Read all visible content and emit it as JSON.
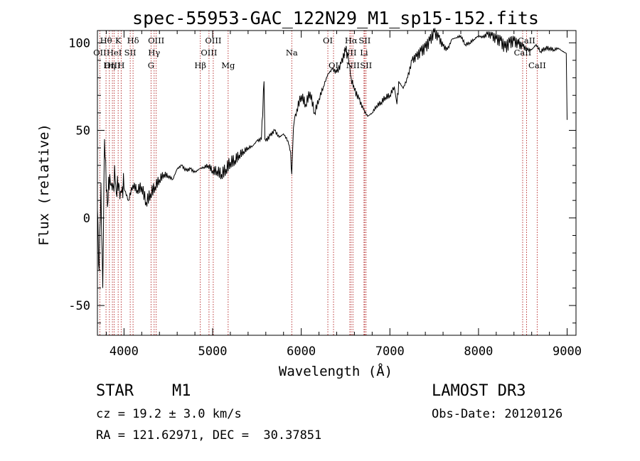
{
  "chart_data": {
    "type": "line",
    "title": "spec-55953-GAC_122N29_M1_sp15-152.fits",
    "xlabel": "Wavelength (Å)",
    "ylabel": "Flux (relative)",
    "xlim": [
      3700,
      9100
    ],
    "ylim": [
      -67,
      107
    ],
    "xticks": [
      4000,
      5000,
      6000,
      7000,
      8000,
      9000
    ],
    "yticks": [
      -50,
      0,
      50,
      100
    ],
    "series": [
      {
        "name": "spectrum",
        "x": [
          3700,
          3720,
          3740,
          3760,
          3780,
          3800,
          3820,
          3840,
          3860,
          3880,
          3900,
          3920,
          3940,
          3960,
          3980,
          4000,
          4050,
          4100,
          4150,
          4200,
          4250,
          4300,
          4350,
          4400,
          4450,
          4500,
          4550,
          4600,
          4650,
          4700,
          4750,
          4800,
          4850,
          4900,
          4950,
          5000,
          5050,
          5100,
          5150,
          5200,
          5250,
          5300,
          5350,
          5400,
          5450,
          5500,
          5550,
          5580,
          5590,
          5600,
          5650,
          5700,
          5750,
          5800,
          5850,
          5880,
          5893,
          5905,
          5920,
          5950,
          6000,
          6050,
          6100,
          6150,
          6200,
          6250,
          6300,
          6350,
          6400,
          6450,
          6500,
          6530,
          6563,
          6600,
          6650,
          6700,
          6750,
          6800,
          6850,
          6900,
          6950,
          7000,
          7050,
          7080,
          7100,
          7150,
          7200,
          7250,
          7300,
          7350,
          7400,
          7450,
          7500,
          7550,
          7600,
          7650,
          7700,
          7750,
          7800,
          7850,
          7900,
          7950,
          8000,
          8050,
          8100,
          8150,
          8200,
          8250,
          8300,
          8350,
          8400,
          8450,
          8500,
          8550,
          8600,
          8650,
          8700,
          8750,
          8800,
          8850,
          8900,
          8950,
          8990,
          9000
        ],
        "values": [
          5,
          -30,
          20,
          -40,
          45,
          15,
          10,
          25,
          20,
          18,
          22,
          12,
          20,
          15,
          18,
          17,
          10,
          19,
          16,
          18,
          9,
          14,
          18,
          22,
          25,
          24,
          22,
          28,
          30,
          27,
          28,
          26,
          28,
          29,
          30,
          27,
          27,
          25,
          28,
          32,
          33,
          36,
          38,
          40,
          41,
          44,
          45,
          78,
          45,
          44,
          47,
          50,
          46,
          48,
          44,
          38,
          25,
          42,
          55,
          62,
          70,
          65,
          72,
          60,
          68,
          75,
          82,
          85,
          83,
          88,
          96,
          92,
          80,
          73,
          68,
          62,
          58,
          60,
          64,
          66,
          69,
          70,
          75,
          65,
          78,
          74,
          80,
          90,
          92,
          95,
          97,
          101,
          106,
          103,
          98,
          96,
          102,
          103,
          104,
          99,
          100,
          102,
          104,
          103,
          105,
          104,
          102,
          101,
          97,
          100,
          101,
          99,
          98,
          96,
          96,
          99,
          95,
          97,
          97,
          96,
          97,
          95,
          94,
          56
        ],
        "color": "#000000"
      }
    ],
    "lines": [
      {
        "label": "Hθ",
        "x": 3797,
        "row": 0
      },
      {
        "label": "OII",
        "x": 3727,
        "row": 1
      },
      {
        "label": "OIII",
        "x": 3869,
        "row": 2
      },
      {
        "label": "K",
        "x": 3934,
        "row": 0
      },
      {
        "label": "HeI",
        "x": 3889,
        "row": 1
      },
      {
        "label": "Hη",
        "x": 3835,
        "row": 2
      },
      {
        "label": "H",
        "x": 3968,
        "row": 2
      },
      {
        "label": "Hδ",
        "x": 4102,
        "row": 0
      },
      {
        "label": "SII",
        "x": 4070,
        "row": 1
      },
      {
        "label": "OIII",
        "x": 4363,
        "row": 0
      },
      {
        "label": "Hγ",
        "x": 4340,
        "row": 1
      },
      {
        "label": "G",
        "x": 4305,
        "row": 2
      },
      {
        "label": "Hβ",
        "x": 4861,
        "row": 2
      },
      {
        "label": "OIII",
        "x": 5007,
        "row": 0
      },
      {
        "label": "OIII",
        "x": 4959,
        "row": 1
      },
      {
        "label": "Mg",
        "x": 5175,
        "row": 2
      },
      {
        "label": "Na",
        "x": 5893,
        "row": 1
      },
      {
        "label": "OI",
        "x": 6300,
        "row": 0
      },
      {
        "label": "OI",
        "x": 6364,
        "row": 2
      },
      {
        "label": "Hα",
        "x": 6563,
        "row": 0
      },
      {
        "label": "NII",
        "x": 6548,
        "row": 1
      },
      {
        "label": "NII",
        "x": 6583,
        "row": 2
      },
      {
        "label": "SII",
        "x": 6716,
        "row": 0
      },
      {
        "label": "Li",
        "x": 6708,
        "row": 1
      },
      {
        "label": "SII",
        "x": 6731,
        "row": 2
      },
      {
        "label": "CaII",
        "x": 8542,
        "row": 0
      },
      {
        "label": "CaII",
        "x": 8498,
        "row": 1
      },
      {
        "label": "CaII",
        "x": 8662,
        "row": 2
      }
    ]
  },
  "info": {
    "class_label": "STAR",
    "subclass": "M1",
    "survey": "LAMOST DR3",
    "cz": "cz = 19.2 ± 3.0 km/s",
    "obs_date": "Obs-Date: 20120126",
    "radec": "RA = 121.62971, DEC =  30.37851"
  }
}
